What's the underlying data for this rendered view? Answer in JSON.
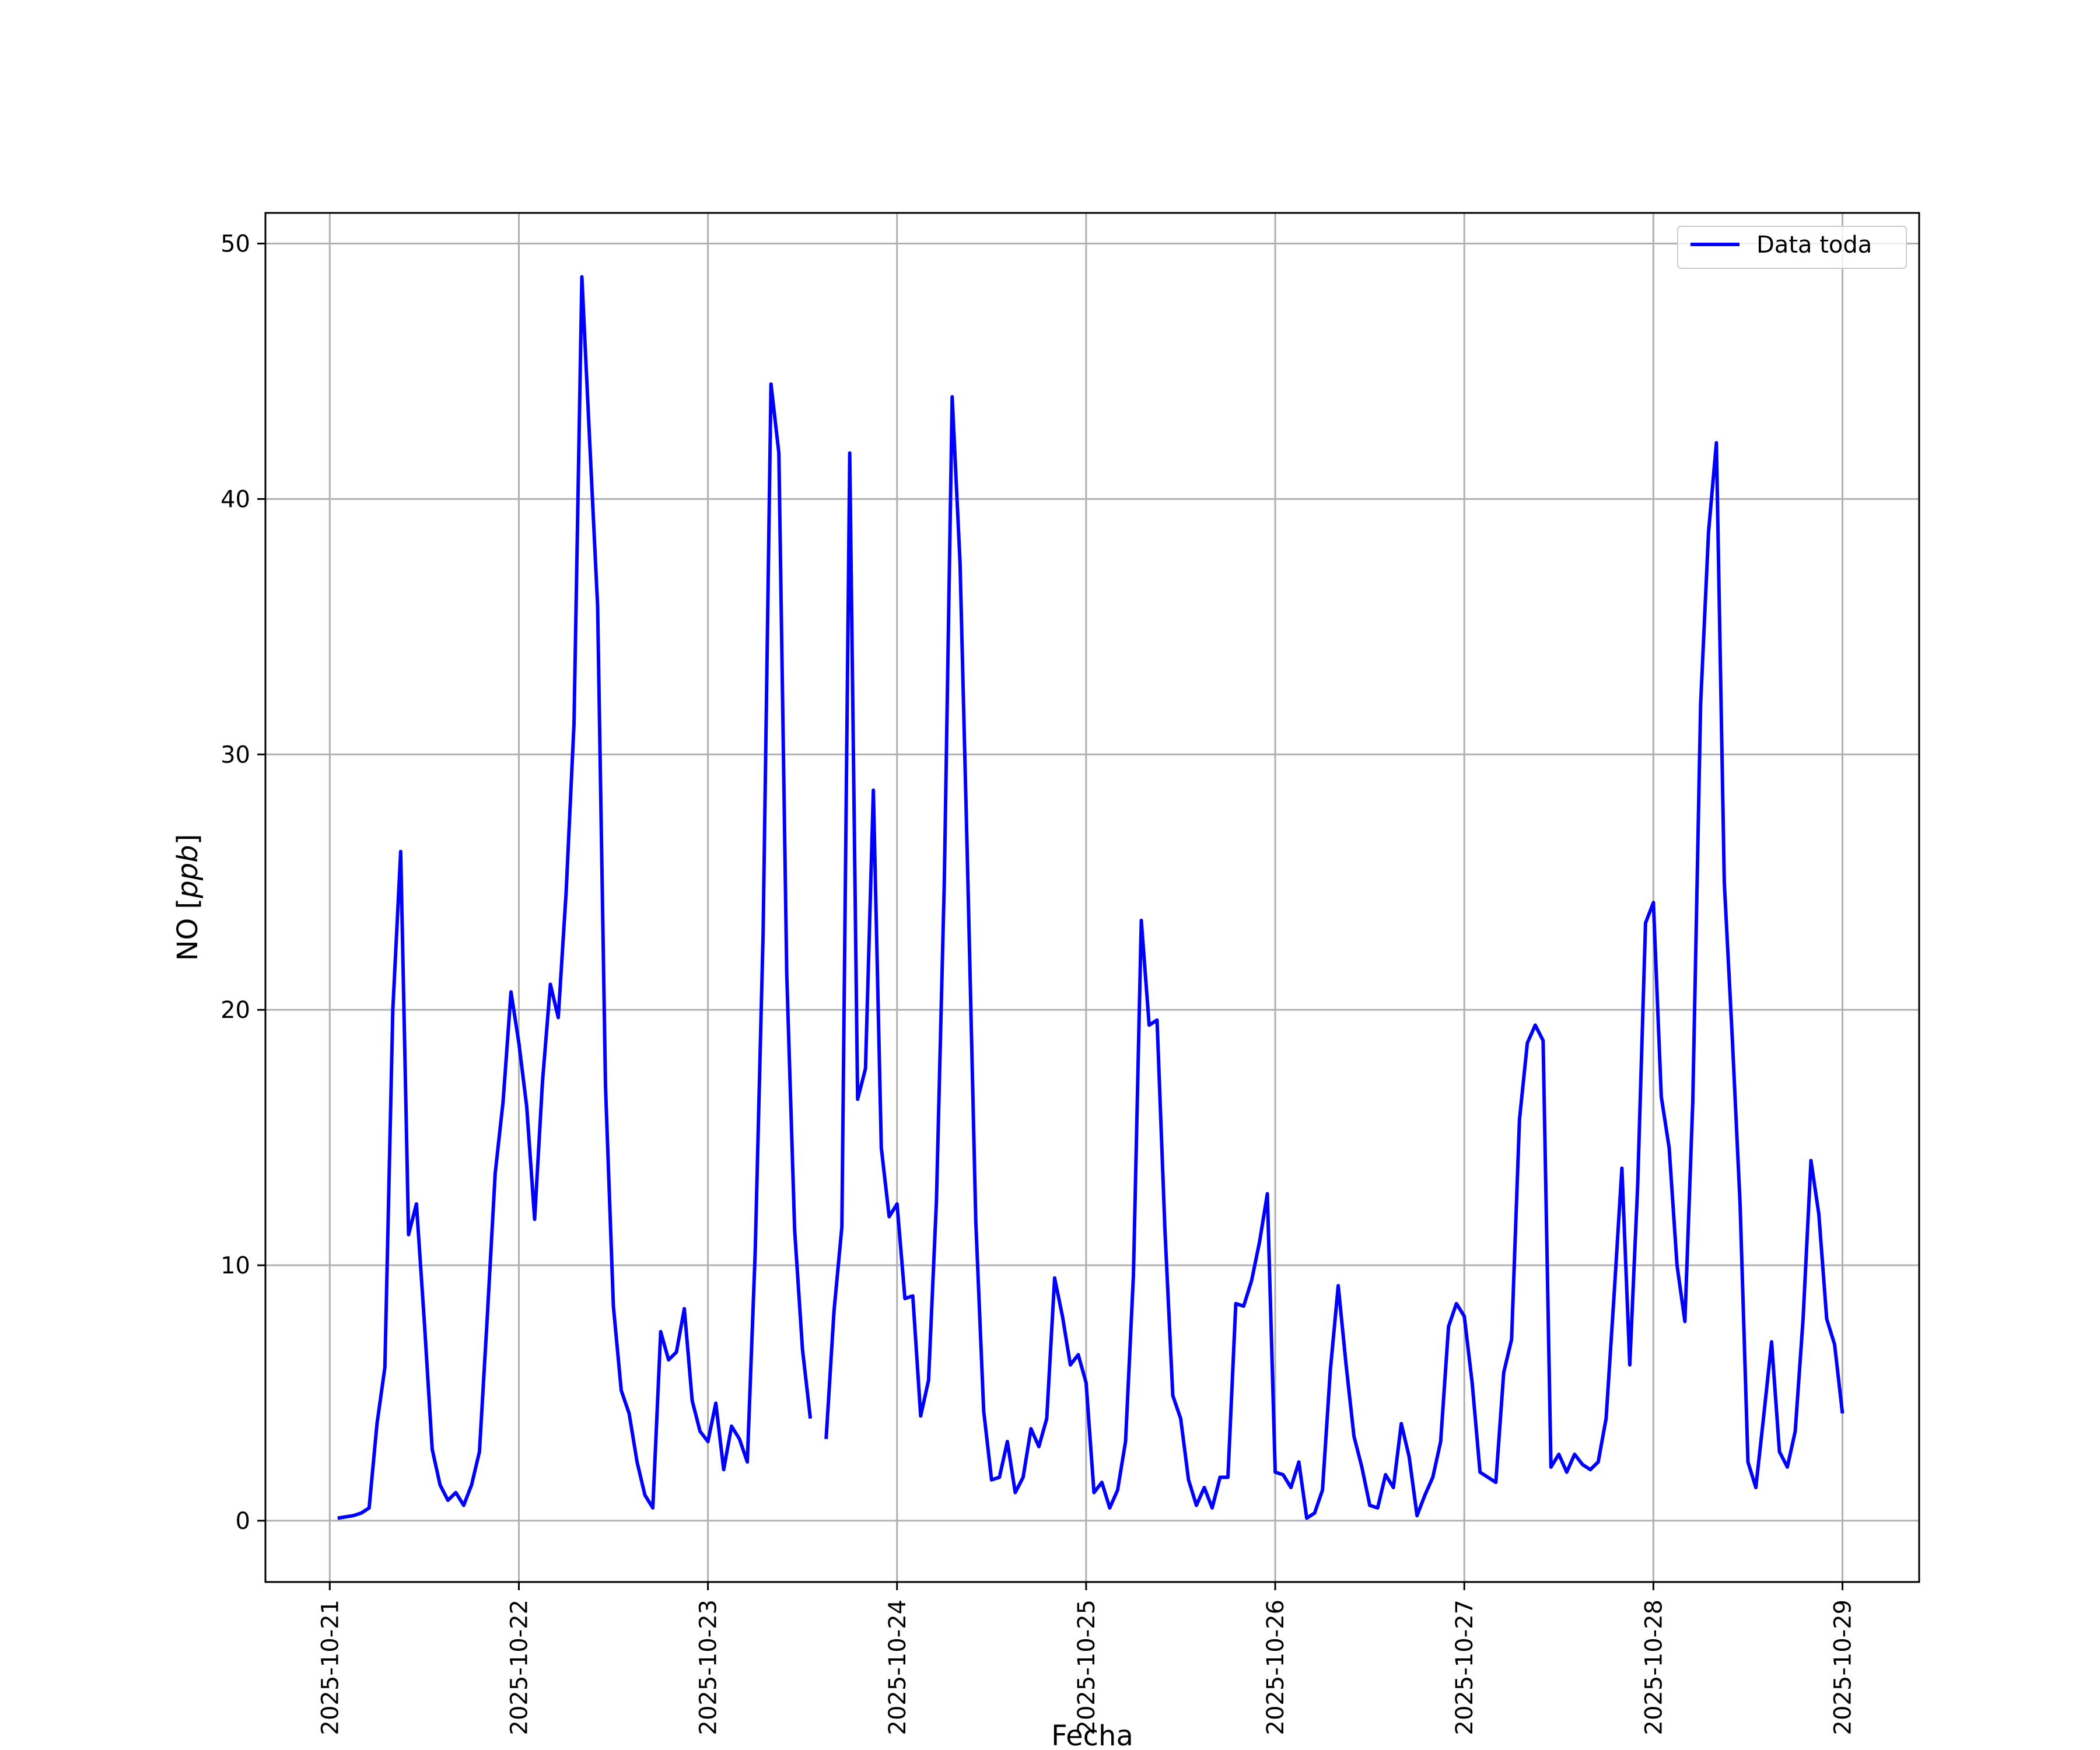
{
  "chart_data": {
    "type": "line",
    "title": "",
    "xlabel": "Fecha",
    "ylabel_main": "NO",
    "ylabel_unit": "ppb",
    "x_ticks": [
      "2025-10-21",
      "2025-10-22",
      "2025-10-23",
      "2025-10-24",
      "2025-10-25",
      "2025-10-26",
      "2025-10-27",
      "2025-10-28",
      "2025-10-29"
    ],
    "y_ticks": [
      0,
      10,
      20,
      30,
      40,
      50
    ],
    "xlim": [
      "2025-10-20T15:50",
      "2025-10-29T09:44"
    ],
    "ylim": [
      -2.4,
      51.2
    ],
    "grid": true,
    "legend_position": "upper right",
    "series": [
      {
        "name": "Data toda",
        "color": "#0000ff",
        "segments": [
          [
            [
              "2025-10-21T01:00",
              0.1
            ],
            [
              "2025-10-21T03:00",
              0.2
            ],
            [
              "2025-10-21T04:00",
              0.3
            ],
            [
              "2025-10-21T05:00",
              0.5
            ],
            [
              "2025-10-21T06:00",
              3.8
            ],
            [
              "2025-10-21T07:00",
              6.0
            ],
            [
              "2025-10-21T08:00",
              20.0
            ],
            [
              "2025-10-21T09:00",
              26.2
            ],
            [
              "2025-10-21T10:00",
              11.2
            ],
            [
              "2025-10-21T11:00",
              12.4
            ],
            [
              "2025-10-21T12:00",
              7.8
            ],
            [
              "2025-10-21T13:00",
              2.8
            ],
            [
              "2025-10-21T14:00",
              1.4
            ],
            [
              "2025-10-21T15:00",
              0.8
            ],
            [
              "2025-10-21T16:00",
              1.1
            ],
            [
              "2025-10-21T17:00",
              0.6
            ],
            [
              "2025-10-21T18:00",
              1.4
            ],
            [
              "2025-10-21T19:00",
              2.7
            ],
            [
              "2025-10-21T20:00",
              8.0
            ],
            [
              "2025-10-21T21:00",
              13.6
            ],
            [
              "2025-10-21T22:00",
              16.4
            ],
            [
              "2025-10-21T23:00",
              20.7
            ],
            [
              "2025-10-22T00:00",
              18.7
            ],
            [
              "2025-10-22T01:00",
              16.2
            ],
            [
              "2025-10-22T02:00",
              11.8
            ],
            [
              "2025-10-22T03:00",
              17.2
            ],
            [
              "2025-10-22T04:00",
              21.0
            ],
            [
              "2025-10-22T05:00",
              19.7
            ],
            [
              "2025-10-22T06:00",
              24.6
            ],
            [
              "2025-10-22T07:00",
              31.2
            ],
            [
              "2025-10-22T08:00",
              48.7
            ],
            [
              "2025-10-22T09:00",
              42.2
            ],
            [
              "2025-10-22T10:00",
              35.8
            ],
            [
              "2025-10-22T11:00",
              17.0
            ],
            [
              "2025-10-22T12:00",
              8.4
            ],
            [
              "2025-10-22T13:00",
              5.1
            ],
            [
              "2025-10-22T14:00",
              4.2
            ],
            [
              "2025-10-22T15:00",
              2.3
            ],
            [
              "2025-10-22T16:00",
              1.0
            ],
            [
              "2025-10-22T17:00",
              0.5
            ],
            [
              "2025-10-22T18:00",
              7.4
            ],
            [
              "2025-10-22T19:00",
              6.3
            ],
            [
              "2025-10-22T20:00",
              6.6
            ],
            [
              "2025-10-22T21:00",
              8.3
            ],
            [
              "2025-10-22T22:00",
              4.7
            ],
            [
              "2025-10-22T23:00",
              3.5
            ],
            [
              "2025-10-23T00:00",
              3.1
            ],
            [
              "2025-10-23T01:00",
              4.6
            ],
            [
              "2025-10-23T02:00",
              2.0
            ],
            [
              "2025-10-23T03:00",
              3.7
            ],
            [
              "2025-10-23T04:00",
              3.2
            ],
            [
              "2025-10-23T05:00",
              2.3
            ],
            [
              "2025-10-23T06:00",
              10.5
            ],
            [
              "2025-10-23T07:00",
              23.0
            ],
            [
              "2025-10-23T08:00",
              44.5
            ],
            [
              "2025-10-23T09:00",
              41.8
            ],
            [
              "2025-10-23T10:00",
              21.4
            ],
            [
              "2025-10-23T11:00",
              11.4
            ],
            [
              "2025-10-23T12:00",
              6.7
            ],
            [
              "2025-10-23T13:00",
              4.0
            ]
          ],
          [
            [
              "2025-10-23T15:00",
              3.2
            ],
            [
              "2025-10-23T16:00",
              8.2
            ],
            [
              "2025-10-23T17:00",
              11.5
            ],
            [
              "2025-10-23T18:00",
              41.8
            ],
            [
              "2025-10-23T19:00",
              16.5
            ],
            [
              "2025-10-23T20:00",
              17.7
            ],
            [
              "2025-10-23T21:00",
              28.6
            ],
            [
              "2025-10-23T22:00",
              14.6
            ],
            [
              "2025-10-23T23:00",
              11.9
            ],
            [
              "2025-10-24T00:00",
              12.4
            ],
            [
              "2025-10-24T01:00",
              8.7
            ],
            [
              "2025-10-24T02:00",
              8.8
            ],
            [
              "2025-10-24T03:00",
              4.1
            ],
            [
              "2025-10-24T04:00",
              5.5
            ],
            [
              "2025-10-24T05:00",
              12.5
            ],
            [
              "2025-10-24T06:00",
              25.0
            ],
            [
              "2025-10-24T07:00",
              44.0
            ],
            [
              "2025-10-24T08:00",
              37.5
            ],
            [
              "2025-10-24T09:00",
              25.0
            ],
            [
              "2025-10-24T10:00",
              11.7
            ],
            [
              "2025-10-24T11:00",
              4.3
            ],
            [
              "2025-10-24T12:00",
              1.6
            ],
            [
              "2025-10-24T13:00",
              1.7
            ],
            [
              "2025-10-24T14:00",
              3.1
            ],
            [
              "2025-10-24T15:00",
              1.1
            ],
            [
              "2025-10-24T16:00",
              1.7
            ],
            [
              "2025-10-24T17:00",
              3.6
            ],
            [
              "2025-10-24T18:00",
              2.9
            ],
            [
              "2025-10-24T19:00",
              4.0
            ],
            [
              "2025-10-24T20:00",
              9.5
            ],
            [
              "2025-10-24T21:00",
              8.0
            ],
            [
              "2025-10-24T22:00",
              6.1
            ],
            [
              "2025-10-24T23:00",
              6.5
            ],
            [
              "2025-10-25T00:00",
              5.4
            ],
            [
              "2025-10-25T01:00",
              1.1
            ],
            [
              "2025-10-25T02:00",
              1.5
            ],
            [
              "2025-10-25T03:00",
              0.5
            ],
            [
              "2025-10-25T04:00",
              1.2
            ],
            [
              "2025-10-25T05:00",
              3.1
            ],
            [
              "2025-10-25T06:00",
              9.6
            ],
            [
              "2025-10-25T07:00",
              23.5
            ],
            [
              "2025-10-25T08:00",
              19.4
            ],
            [
              "2025-10-25T09:00",
              19.6
            ],
            [
              "2025-10-25T10:00",
              11.4
            ],
            [
              "2025-10-25T11:00",
              4.9
            ],
            [
              "2025-10-25T12:00",
              4.0
            ],
            [
              "2025-10-25T13:00",
              1.6
            ],
            [
              "2025-10-25T14:00",
              0.6
            ],
            [
              "2025-10-25T15:00",
              1.3
            ],
            [
              "2025-10-25T16:00",
              0.5
            ],
            [
              "2025-10-25T17:00",
              1.7
            ],
            [
              "2025-10-25T18:00",
              1.7
            ],
            [
              "2025-10-25T19:00",
              8.5
            ],
            [
              "2025-10-25T20:00",
              8.4
            ],
            [
              "2025-10-25T21:00",
              9.4
            ],
            [
              "2025-10-25T22:00",
              10.9
            ],
            [
              "2025-10-25T23:00",
              12.8
            ],
            [
              "2025-10-26T00:00",
              1.9
            ],
            [
              "2025-10-26T01:00",
              1.8
            ],
            [
              "2025-10-26T02:00",
              1.3
            ],
            [
              "2025-10-26T03:00",
              2.3
            ],
            [
              "2025-10-26T04:00",
              0.1
            ],
            [
              "2025-10-26T05:00",
              0.3
            ],
            [
              "2025-10-26T06:00",
              1.2
            ],
            [
              "2025-10-26T07:00",
              5.9
            ],
            [
              "2025-10-26T08:00",
              9.2
            ],
            [
              "2025-10-26T09:00",
              6.1
            ],
            [
              "2025-10-26T10:00",
              3.3
            ],
            [
              "2025-10-26T11:00",
              2.1
            ],
            [
              "2025-10-26T12:00",
              0.6
            ],
            [
              "2025-10-26T13:00",
              0.5
            ],
            [
              "2025-10-26T14:00",
              1.8
            ],
            [
              "2025-10-26T15:00",
              1.3
            ],
            [
              "2025-10-26T16:00",
              3.8
            ],
            [
              "2025-10-26T17:00",
              2.5
            ],
            [
              "2025-10-26T18:00",
              0.2
            ],
            [
              "2025-10-26T19:00",
              1.0
            ],
            [
              "2025-10-26T20:00",
              1.7
            ],
            [
              "2025-10-26T21:00",
              3.1
            ],
            [
              "2025-10-26T22:00",
              7.6
            ],
            [
              "2025-10-26T23:00",
              8.5
            ],
            [
              "2025-10-27T00:00",
              8.0
            ],
            [
              "2025-10-27T01:00",
              5.4
            ],
            [
              "2025-10-27T02:00",
              1.9
            ],
            [
              "2025-10-27T03:00",
              1.7
            ],
            [
              "2025-10-27T04:00",
              1.5
            ],
            [
              "2025-10-27T05:00",
              5.8
            ],
            [
              "2025-10-27T06:00",
              7.1
            ],
            [
              "2025-10-27T07:00",
              15.7
            ],
            [
              "2025-10-27T08:00",
              18.7
            ],
            [
              "2025-10-27T09:00",
              19.4
            ],
            [
              "2025-10-27T10:00",
              18.8
            ],
            [
              "2025-10-27T11:00",
              2.1
            ],
            [
              "2025-10-27T12:00",
              2.6
            ],
            [
              "2025-10-27T13:00",
              1.9
            ],
            [
              "2025-10-27T14:00",
              2.6
            ],
            [
              "2025-10-27T15:00",
              2.2
            ],
            [
              "2025-10-27T16:00",
              2.0
            ],
            [
              "2025-10-27T17:00",
              2.3
            ],
            [
              "2025-10-27T18:00",
              4.0
            ],
            [
              "2025-10-27T19:00",
              8.8
            ],
            [
              "2025-10-27T20:00",
              13.8
            ],
            [
              "2025-10-27T21:00",
              6.1
            ],
            [
              "2025-10-27T22:00",
              13.1
            ],
            [
              "2025-10-27T23:00",
              23.4
            ],
            [
              "2025-10-28T00:00",
              24.2
            ],
            [
              "2025-10-28T01:00",
              16.6
            ],
            [
              "2025-10-28T02:00",
              14.6
            ],
            [
              "2025-10-28T03:00",
              10.0
            ],
            [
              "2025-10-28T04:00",
              7.8
            ],
            [
              "2025-10-28T05:00",
              16.4
            ],
            [
              "2025-10-28T06:00",
              32.0
            ],
            [
              "2025-10-28T07:00",
              38.7
            ],
            [
              "2025-10-28T08:00",
              42.2
            ],
            [
              "2025-10-28T09:00",
              25.0
            ],
            [
              "2025-10-28T10:00",
              19.0
            ],
            [
              "2025-10-28T11:00",
              12.4
            ],
            [
              "2025-10-28T12:00",
              2.3
            ],
            [
              "2025-10-28T13:00",
              1.3
            ],
            [
              "2025-10-28T14:00",
              4.1
            ],
            [
              "2025-10-28T15:00",
              7.0
            ],
            [
              "2025-10-28T16:00",
              2.7
            ],
            [
              "2025-10-28T17:00",
              2.1
            ],
            [
              "2025-10-28T18:00",
              3.5
            ],
            [
              "2025-10-28T19:00",
              7.9
            ],
            [
              "2025-10-28T20:00",
              14.1
            ],
            [
              "2025-10-28T21:00",
              12.0
            ],
            [
              "2025-10-28T22:00",
              7.9
            ],
            [
              "2025-10-28T23:00",
              6.9
            ],
            [
              "2025-10-29T00:00",
              4.2
            ]
          ]
        ]
      }
    ]
  }
}
